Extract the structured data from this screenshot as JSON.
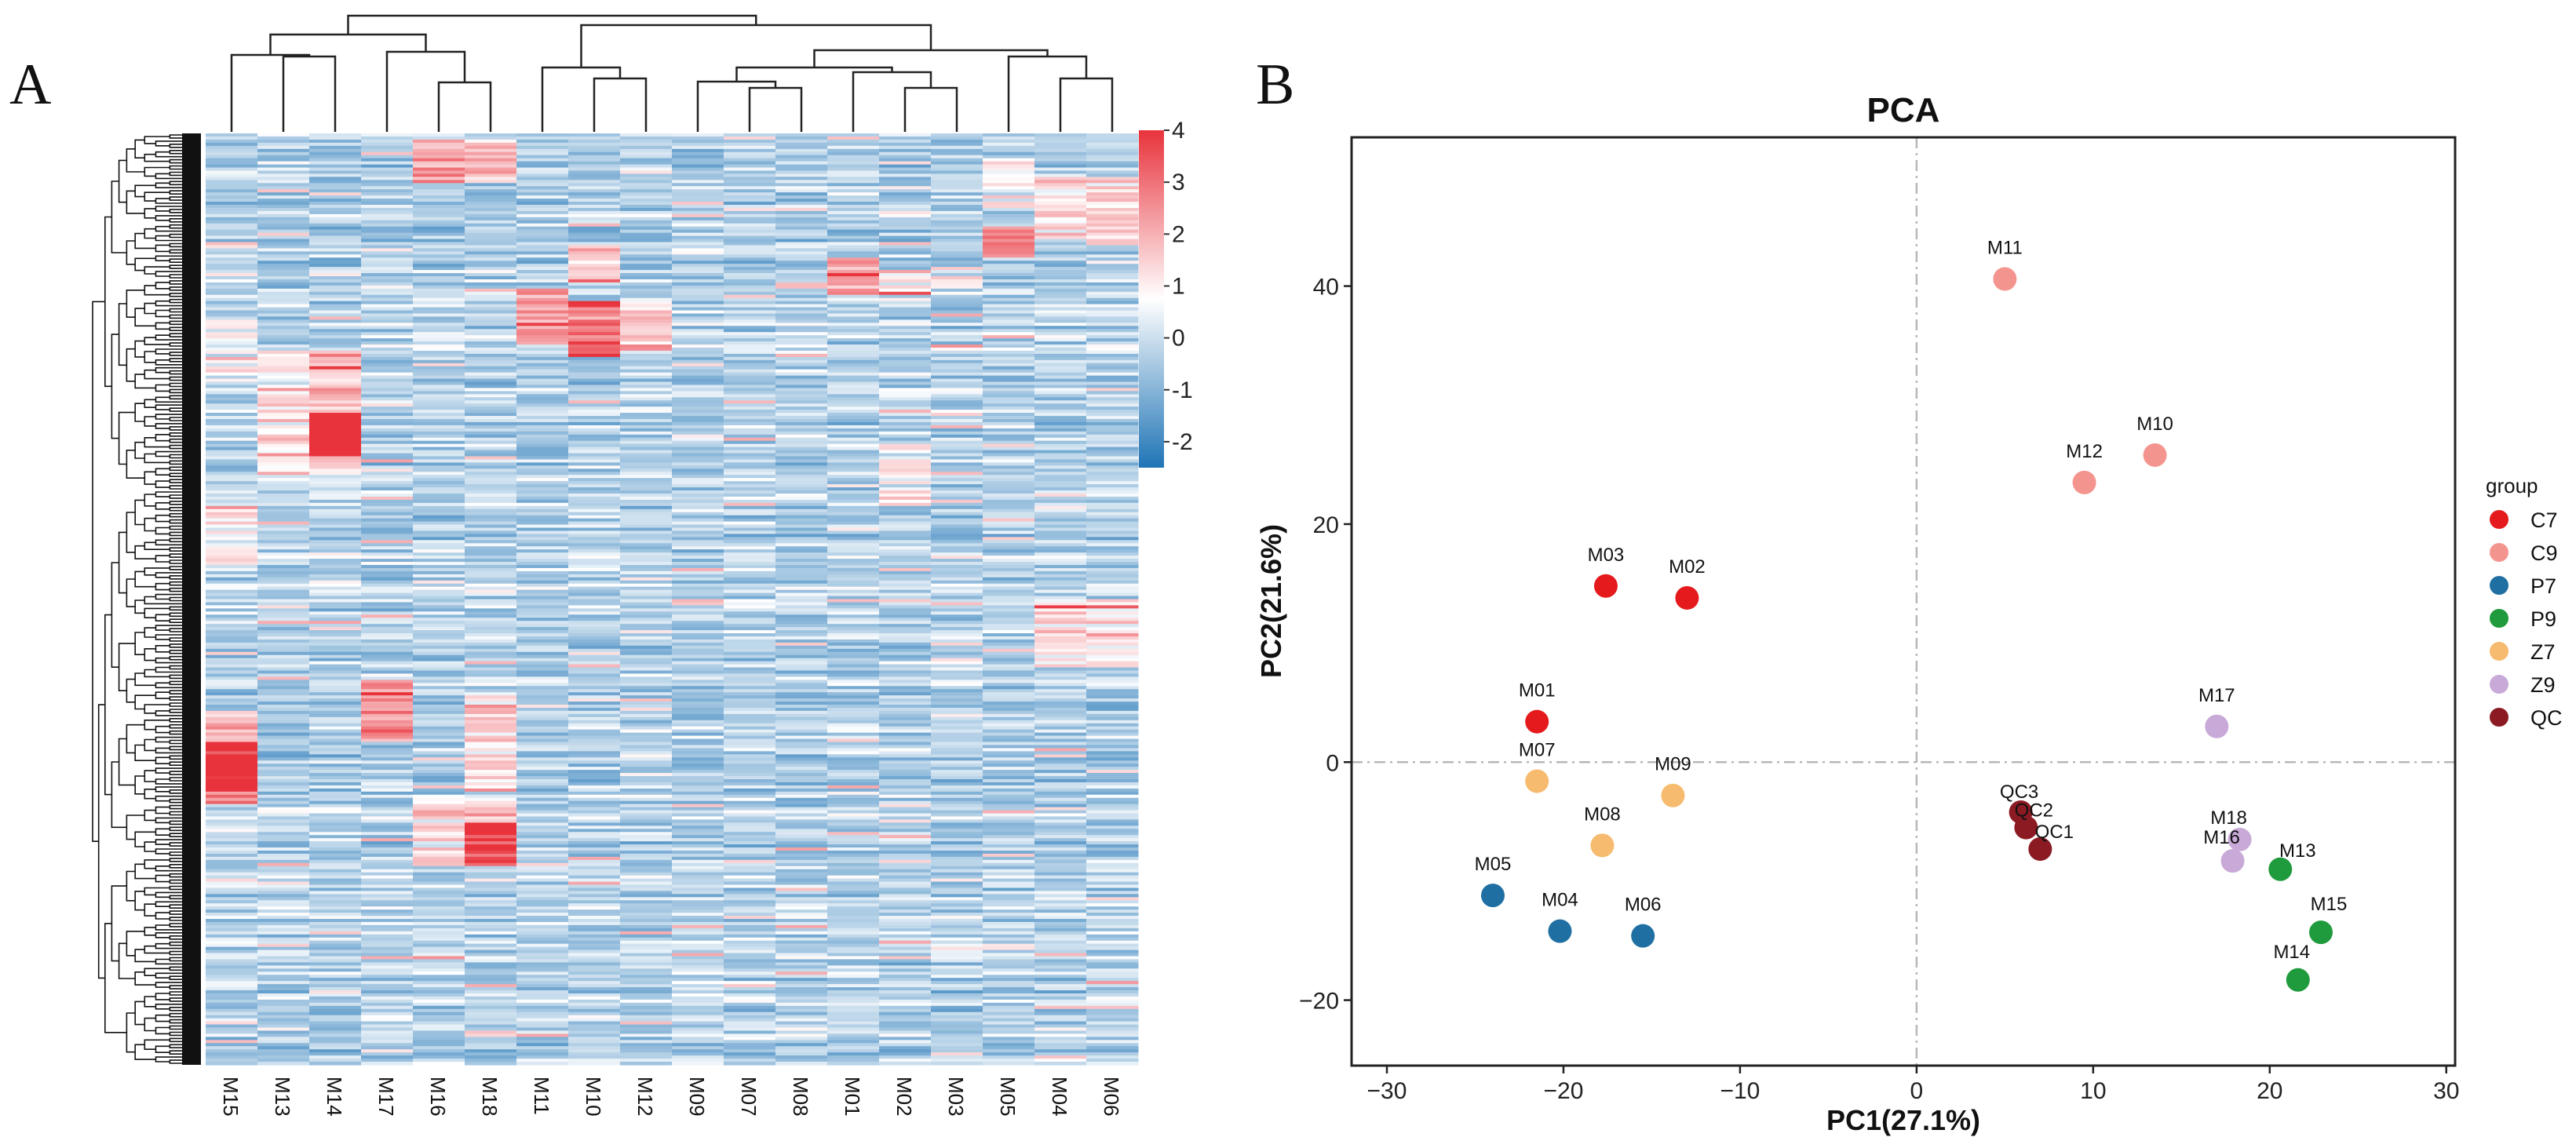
{
  "panel_a": {
    "letter": "A",
    "samples": [
      "M15",
      "M13",
      "M14",
      "M17",
      "M16",
      "M18",
      "M11",
      "M10",
      "M12",
      "M09",
      "M07",
      "M08",
      "M01",
      "M02",
      "M03",
      "M05",
      "M04",
      "M06"
    ],
    "colorbar_ticks": [
      "4",
      "3",
      "2",
      "1",
      "0",
      "-1",
      "-2"
    ],
    "colors": {
      "low": "#2b7bb9",
      "mid": "#ffffff",
      "high": "#e8333c"
    }
  },
  "panel_b": {
    "letter": "B"
  },
  "chart_data": [
    {
      "type": "heatmap",
      "title": "",
      "columns": [
        "M15",
        "M13",
        "M14",
        "M17",
        "M16",
        "M18",
        "M11",
        "M10",
        "M12",
        "M09",
        "M07",
        "M08",
        "M01",
        "M02",
        "M03",
        "M05",
        "M04",
        "M06"
      ],
      "value_range": [
        -2.5,
        4
      ],
      "colorbar_ticks": [
        4,
        3,
        2,
        1,
        0,
        -1,
        -2
      ],
      "clustering": "rows and columns (hierarchical dendrograms)",
      "column_dendrogram_pairs": [
        [
          "M15",
          "M13/M14"
        ],
        [
          "M13",
          "M14"
        ],
        [
          "M17",
          "M16/M18"
        ],
        [
          "M16",
          "M18"
        ],
        [
          "M11",
          "M10/M12"
        ],
        [
          "M10",
          "M12"
        ],
        [
          "M09",
          "M07/M08"
        ],
        [
          "M07",
          "M08"
        ],
        [
          "M01",
          "M02/M03"
        ],
        [
          "M02",
          "M03"
        ],
        [
          "M05",
          "M04/M06"
        ],
        [
          "M04",
          "M06"
        ]
      ]
    },
    {
      "type": "scatter",
      "title": "PCA",
      "xlabel": "PC1(27.1%)",
      "ylabel": "PC2(21.6%)",
      "xlim": [
        -32,
        30.5
      ],
      "ylim": [
        -25.5,
        52.5
      ],
      "xticks": [
        -30,
        -20,
        -10,
        0,
        10,
        20,
        30
      ],
      "yticks": [
        -20,
        0,
        20,
        40
      ],
      "tick_labels_x": [
        "−30",
        "−20",
        "−10",
        "0",
        "10",
        "20",
        "30"
      ],
      "tick_labels_y": [
        "−20",
        "0",
        "20",
        "40"
      ],
      "reference_lines": {
        "x": 0,
        "y": 0,
        "style": "dash-dot"
      },
      "legend": {
        "title": "group",
        "position": "right",
        "entries": [
          {
            "label": "C7",
            "color": "#e41a1c"
          },
          {
            "label": "C9",
            "color": "#f4948f"
          },
          {
            "label": "P7",
            "color": "#1f6fa3"
          },
          {
            "label": "P9",
            "color": "#1f9a3c"
          },
          {
            "label": "Z7",
            "color": "#f6bb6e"
          },
          {
            "label": "Z9",
            "color": "#c8a9d8"
          },
          {
            "label": "QC",
            "color": "#8b1a22"
          }
        ]
      },
      "points": [
        {
          "label": "M01",
          "group": "C7",
          "x": -21.5,
          "y": 3.4
        },
        {
          "label": "M02",
          "group": "C7",
          "x": -13.0,
          "y": 13.8
        },
        {
          "label": "M03",
          "group": "C7",
          "x": -17.6,
          "y": 14.8
        },
        {
          "label": "M10",
          "group": "C9",
          "x": 13.5,
          "y": 25.8
        },
        {
          "label": "M11",
          "group": "C9",
          "x": 5.0,
          "y": 40.6
        },
        {
          "label": "M12",
          "group": "C9",
          "x": 9.5,
          "y": 23.5
        },
        {
          "label": "M04",
          "group": "P7",
          "x": -20.2,
          "y": -14.2
        },
        {
          "label": "M05",
          "group": "P7",
          "x": -24.0,
          "y": -11.2
        },
        {
          "label": "M06",
          "group": "P7",
          "x": -15.5,
          "y": -14.6
        },
        {
          "label": "M13",
          "group": "P9",
          "x": 20.6,
          "y": -9.0
        },
        {
          "label": "M14",
          "group": "P9",
          "x": 21.6,
          "y": -18.3
        },
        {
          "label": "M15",
          "group": "P9",
          "x": 22.9,
          "y": -14.3
        },
        {
          "label": "M07",
          "group": "Z7",
          "x": -21.5,
          "y": -1.6
        },
        {
          "label": "M08",
          "group": "Z7",
          "x": -17.8,
          "y": -7.0
        },
        {
          "label": "M09",
          "group": "Z7",
          "x": -13.8,
          "y": -2.8
        },
        {
          "label": "M16",
          "group": "Z9",
          "x": 17.9,
          "y": -8.3
        },
        {
          "label": "M17",
          "group": "Z9",
          "x": 17.0,
          "y": 3.0
        },
        {
          "label": "M18",
          "group": "Z9",
          "x": 18.3,
          "y": -6.5
        },
        {
          "label": "QC1",
          "group": "QC",
          "x": 7.0,
          "y": -7.3
        },
        {
          "label": "QC2",
          "group": "QC",
          "x": 6.2,
          "y": -5.5
        },
        {
          "label": "QC3",
          "group": "QC",
          "x": 5.9,
          "y": -4.2
        }
      ]
    }
  ]
}
